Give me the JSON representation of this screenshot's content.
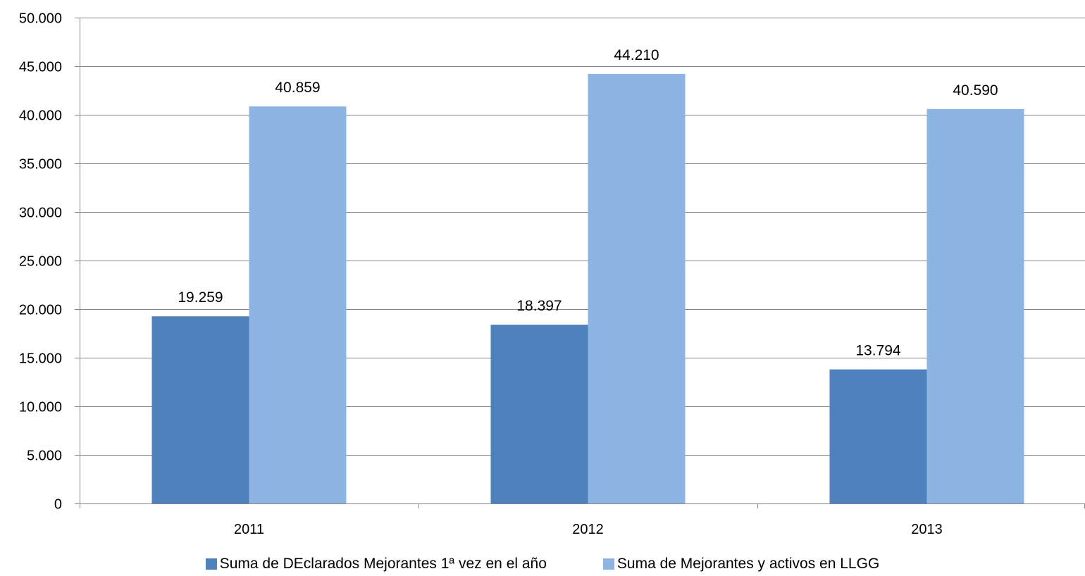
{
  "chart_data": {
    "type": "bar",
    "categories": [
      "2011",
      "2012",
      "2013"
    ],
    "series": [
      {
        "name": "Suma de DEclarados Mejorantes 1ª vez en el año",
        "values": [
          19259,
          18397,
          13794
        ],
        "value_labels": [
          "19.259",
          "18.397",
          "13.794"
        ],
        "color": "#4F81BD"
      },
      {
        "name": "Suma de Mejorantes y activos en LLGG",
        "values": [
          40859,
          44210,
          40590
        ],
        "value_labels": [
          "40.859",
          "44.210",
          "40.590"
        ],
        "color": "#8EB4E3"
      }
    ],
    "ylim": [
      0,
      50000
    ],
    "yticks": [
      0,
      5000,
      10000,
      15000,
      20000,
      25000,
      30000,
      35000,
      40000,
      45000,
      50000
    ],
    "ytick_labels": [
      "0",
      "5.000",
      "10.000",
      "15.000",
      "20.000",
      "25.000",
      "30.000",
      "35.000",
      "40.000",
      "45.000",
      "50.000"
    ],
    "grid": true,
    "legend_position": "bottom",
    "title": "",
    "xlabel": "",
    "ylabel": ""
  }
}
